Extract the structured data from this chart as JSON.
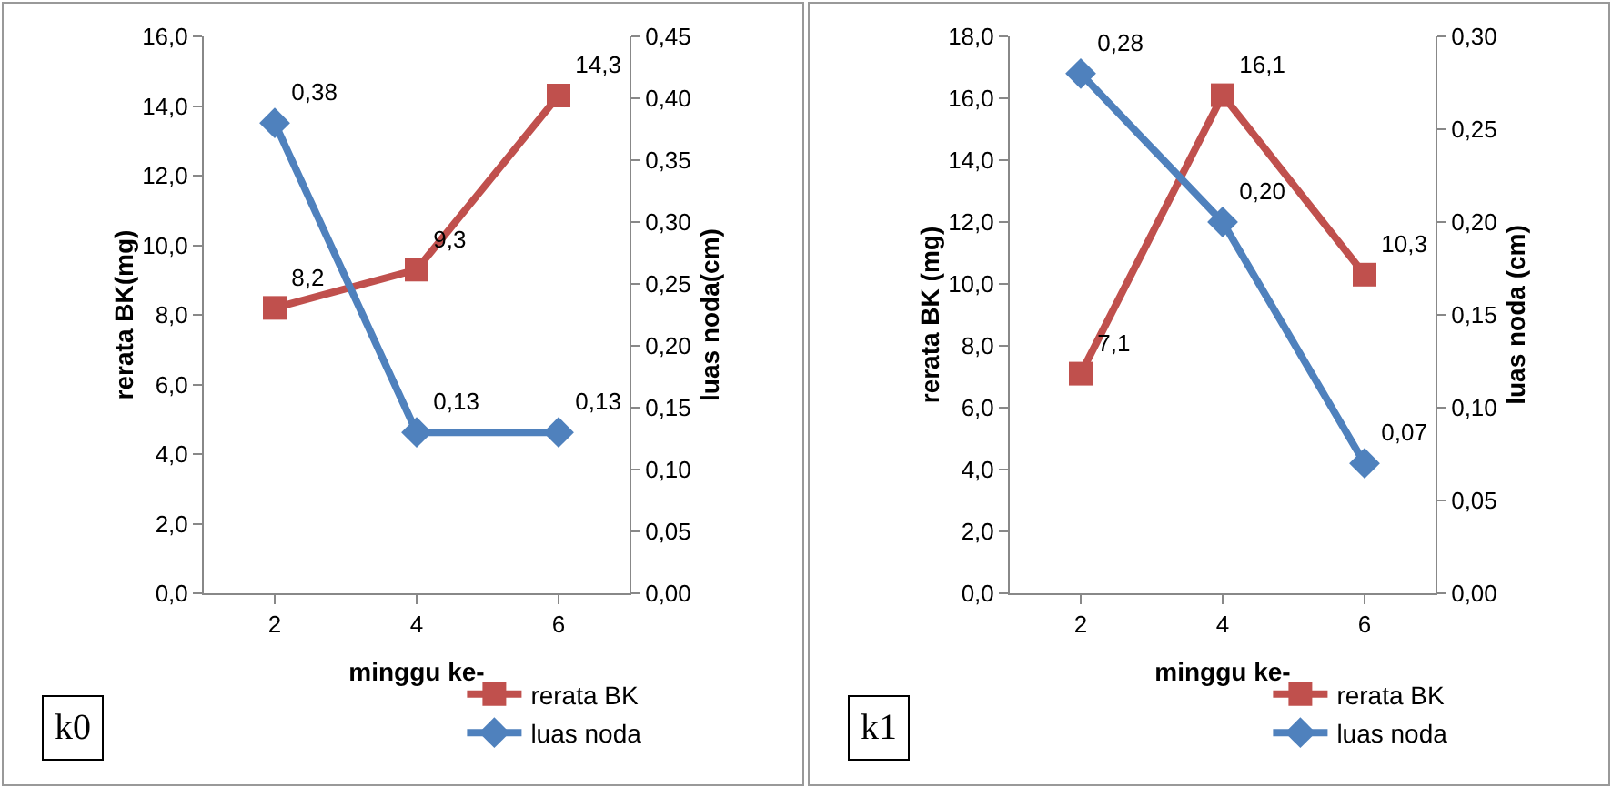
{
  "chart_data": [
    {
      "type": "line",
      "categories": [
        "2",
        "4",
        "6"
      ],
      "xlabel": "minggu ke-",
      "ylabel": "rerata BK(mg)",
      "y2label": "luas noda(cm)",
      "annotations": [
        "k0"
      ],
      "legend": "bottom right",
      "line_style": "solid",
      "grid": false,
      "ylim": [
        0,
        16
      ],
      "yticks": [
        {
          "value": 0,
          "label": "0,0"
        },
        {
          "value": 2,
          "label": "2,0"
        },
        {
          "value": 4,
          "label": "4,0"
        },
        {
          "value": 6,
          "label": "6,0"
        },
        {
          "value": 8,
          "label": "8,0"
        },
        {
          "value": 10,
          "label": "10,0"
        },
        {
          "value": 12,
          "label": "12,0"
        },
        {
          "value": 14,
          "label": "14,0"
        },
        {
          "value": 16,
          "label": "16,0"
        }
      ],
      "y2lim": [
        0,
        0.45
      ],
      "y2ticks": [
        {
          "value": 0,
          "label": "0,00"
        },
        {
          "value": 0.05,
          "label": "0,05"
        },
        {
          "value": 0.1,
          "label": "0,10"
        },
        {
          "value": 0.15,
          "label": "0,15"
        },
        {
          "value": 0.2,
          "label": "0,20"
        },
        {
          "value": 0.25,
          "label": "0,25"
        },
        {
          "value": 0.3,
          "label": "0,30"
        },
        {
          "value": 0.35,
          "label": "0,35"
        },
        {
          "value": 0.4,
          "label": "0,40"
        },
        {
          "value": 0.45,
          "label": "0,45"
        }
      ],
      "series": [
        {
          "name": "rerata BK",
          "color": "#c0504d",
          "marker": "square",
          "values": [
            8.2,
            9.3,
            14.3
          ],
          "value_labels": [
            "8,2",
            "9,3",
            "14,3"
          ]
        },
        {
          "name": "luas noda",
          "color": "#4f81bd",
          "marker": "diamond",
          "axis": "y2",
          "values": [
            0.38,
            0.13,
            0.13
          ],
          "value_labels": [
            "0,38",
            "0,13",
            "0,13"
          ]
        }
      ]
    },
    {
      "type": "line",
      "categories": [
        "2",
        "4",
        "6"
      ],
      "xlabel": "minggu ke-",
      "ylabel": "rerata BK (mg)",
      "y2label": "luas noda (cm)",
      "annotations": [
        "k1"
      ],
      "legend": "bottom right",
      "line_style": "solid",
      "grid": false,
      "ylim": [
        0,
        18
      ],
      "yticks": [
        {
          "value": 0,
          "label": "0,0"
        },
        {
          "value": 2,
          "label": "2,0"
        },
        {
          "value": 4,
          "label": "4,0"
        },
        {
          "value": 6,
          "label": "6,0"
        },
        {
          "value": 8,
          "label": "8,0"
        },
        {
          "value": 10,
          "label": "10,0"
        },
        {
          "value": 12,
          "label": "12,0"
        },
        {
          "value": 14,
          "label": "14,0"
        },
        {
          "value": 16,
          "label": "16,0"
        },
        {
          "value": 18,
          "label": "18,0"
        }
      ],
      "y2lim": [
        0,
        0.3
      ],
      "y2ticks": [
        {
          "value": 0,
          "label": "0,00"
        },
        {
          "value": 0.05,
          "label": "0,05"
        },
        {
          "value": 0.1,
          "label": "0,10"
        },
        {
          "value": 0.15,
          "label": "0,15"
        },
        {
          "value": 0.2,
          "label": "0,20"
        },
        {
          "value": 0.25,
          "label": "0,25"
        },
        {
          "value": 0.3,
          "label": "0,30"
        }
      ],
      "series": [
        {
          "name": "rerata BK",
          "color": "#c0504d",
          "marker": "square",
          "values": [
            7.1,
            16.1,
            10.3
          ],
          "value_labels": [
            "7,1",
            "16,1",
            "10,3"
          ]
        },
        {
          "name": "luas noda",
          "color": "#4f81bd",
          "marker": "diamond",
          "axis": "y2",
          "values": [
            0.28,
            0.2,
            0.07
          ],
          "value_labels": [
            "0,28",
            "0,20",
            "0,07"
          ]
        }
      ]
    }
  ]
}
